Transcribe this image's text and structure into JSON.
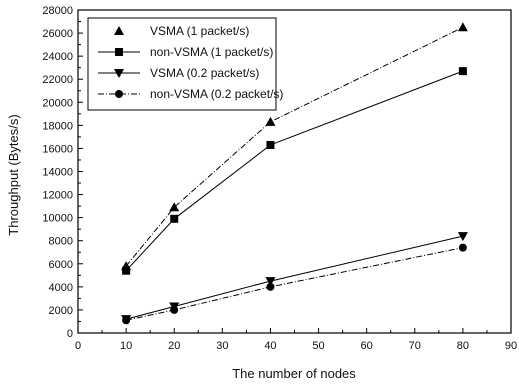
{
  "chart_data": {
    "type": "line",
    "title": "",
    "xlabel": "The number of nodes",
    "ylabel": "Throughput (Bytes/s)",
    "xlim": [
      0,
      90
    ],
    "ylim": [
      0,
      28000
    ],
    "x_ticks": [
      0,
      10,
      20,
      30,
      40,
      50,
      60,
      70,
      80,
      90
    ],
    "y_ticks": [
      0,
      2000,
      4000,
      6000,
      8000,
      10000,
      12000,
      14000,
      16000,
      18000,
      20000,
      22000,
      24000,
      26000,
      28000
    ],
    "grid": false,
    "legend_position": "top-left",
    "series": [
      {
        "name": "VSMA (1 packet/s)",
        "marker": "triangle-up",
        "line": "dash-dot",
        "x": [
          10,
          20,
          40,
          80
        ],
        "y": [
          5800,
          10900,
          18300,
          26500
        ]
      },
      {
        "name": "non-VSMA (1 packet/s)",
        "marker": "square",
        "line": "solid",
        "x": [
          10,
          20,
          40,
          80
        ],
        "y": [
          5400,
          9900,
          16300,
          22700
        ]
      },
      {
        "name": "VSMA (0.2 packet/s)",
        "marker": "triangle-down",
        "line": "solid",
        "x": [
          10,
          20,
          40,
          80
        ],
        "y": [
          1200,
          2300,
          4500,
          8400
        ]
      },
      {
        "name": "non-VSMA (0.2 packet/s)",
        "marker": "circle",
        "line": "dash-dot",
        "x": [
          10,
          20,
          40,
          80
        ],
        "y": [
          1100,
          2000,
          4000,
          7400
        ]
      }
    ]
  }
}
